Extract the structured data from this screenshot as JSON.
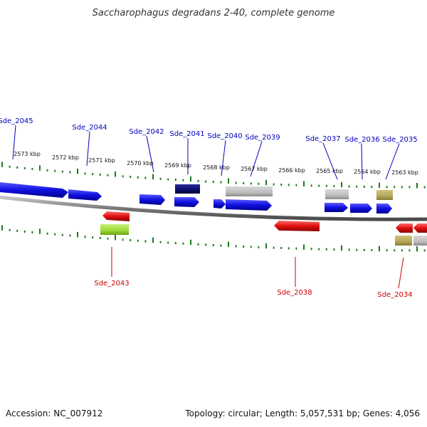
{
  "title": "Saccharophagus degradans 2-40, complete genome",
  "footer": {
    "accession": "Accession: NC_007912",
    "summary": "Topology: circular; Length: 5,057,531 bp; Genes: 4,056"
  },
  "colors": {
    "forward_gene": "#1010e0",
    "forward_label": "#0000bb",
    "reverse_gene": "#e01010",
    "reverse_label": "#cc0000",
    "tick": "#1f7a1f",
    "backbone": "#8a8a8a",
    "highlight_dark": "#101070",
    "gray_feature": "#bdbdbd",
    "olive_feature": "#b5a85a",
    "lime_feature": "#9ed836"
  },
  "kbp_markers": [
    "2573 kbp",
    "2572 kbp",
    "2571 kbp",
    "2570 kbp",
    "2569 kbp",
    "2568 kbp",
    "2567 kbp",
    "2566 kbp",
    "2565 kbp",
    "2564 kbp",
    "2563 kbp"
  ],
  "forward_labels": [
    "Sde_2045",
    "Sde_2044",
    "Sde_2042",
    "Sde_2041",
    "Sde_2040",
    "Sde_2039",
    "Sde_2037",
    "Sde_2036",
    "Sde_2035"
  ],
  "reverse_labels": [
    "Sde_2043",
    "Sde_2038",
    "Sde_2034"
  ]
}
